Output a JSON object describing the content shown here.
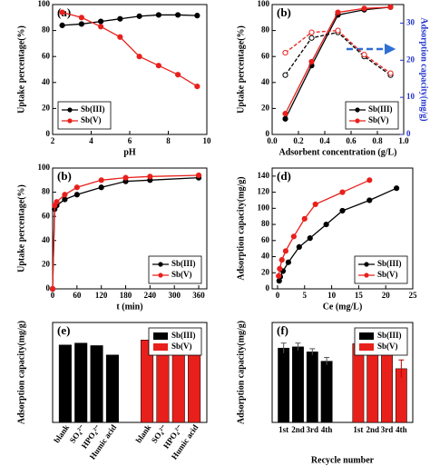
{
  "chart_data": [
    {
      "type": "line",
      "title": "(a)",
      "x_label": "pH",
      "y_label": "Uptake percentage(%)",
      "xlim": [
        2,
        10
      ],
      "xticks": [
        2,
        4,
        6,
        8,
        10
      ],
      "ylim": [
        0,
        100
      ],
      "yticks": [
        0,
        20,
        40,
        60,
        80,
        100
      ],
      "legend": "lower left",
      "series": [
        {
          "name": "Sb(III)",
          "color": "#000000",
          "x": [
            2.5,
            3.5,
            4.5,
            5.5,
            6.5,
            7.5,
            8.5,
            9.5
          ],
          "values": [
            84,
            85,
            87,
            89,
            91,
            92,
            92,
            91.5
          ]
        },
        {
          "name": "Sb(V)",
          "color": "#e8201c",
          "x": [
            2.5,
            3.5,
            4.5,
            5.5,
            6.5,
            7.5,
            8.5,
            9.5
          ],
          "values": [
            94,
            90,
            83,
            75,
            60,
            53,
            46,
            37
          ]
        }
      ]
    },
    {
      "type": "line",
      "title": "(b)",
      "x_label": "Adsorbent concentration (g/L)",
      "y_label": "Uptake percentage(%)",
      "y2_label": "Adsorption capacity(mg/g)",
      "xlim": [
        0,
        1.0
      ],
      "xticks": [
        {
          "value": 0,
          "label": "0.0"
        },
        0.2,
        0.4,
        0.6,
        0.8,
        {
          "value": 1,
          "label": "1.0"
        }
      ],
      "ylim": [
        0,
        100
      ],
      "yticks": [
        0,
        20,
        40,
        60,
        80,
        100
      ],
      "y2lim": [
        0,
        35
      ],
      "y2ticks": [
        0,
        10,
        20,
        30
      ],
      "legend": "lower right",
      "series": [
        {
          "name": "Sb(III)",
          "color": "#000000",
          "x": [
            0.1,
            0.3,
            0.5,
            0.7,
            0.9
          ],
          "values": [
            12,
            53,
            92,
            96,
            98
          ]
        },
        {
          "name": "Sb(V)",
          "color": "#e8201c",
          "x": [
            0.1,
            0.3,
            0.5,
            0.7,
            0.9
          ],
          "values": [
            16,
            56,
            94,
            97,
            98
          ]
        },
        {
          "color": "#000000",
          "dash": true,
          "axis": "y2",
          "x": [
            0.1,
            0.3,
            0.5,
            0.7,
            0.9
          ],
          "values": [
            16,
            26,
            27.5,
            21,
            16
          ]
        },
        {
          "color": "#e8201c",
          "dash": true,
          "axis": "y2",
          "x": [
            0.1,
            0.3,
            0.5,
            0.7,
            0.9
          ],
          "values": [
            22,
            27.5,
            28,
            21.5,
            16.5
          ]
        }
      ]
    },
    {
      "type": "line",
      "title": "(b)",
      "x_label": "t (min)",
      "y_label": "Uptake percentage(%)",
      "xlim": [
        0,
        380
      ],
      "xticks": [
        0,
        60,
        120,
        180,
        240,
        300,
        360
      ],
      "ylim": [
        0,
        100
      ],
      "yticks": [
        0,
        20,
        40,
        60,
        80,
        100
      ],
      "legend": "lower right",
      "series": [
        {
          "name": "Sb(III)",
          "color": "#000000",
          "x": [
            0,
            5,
            10,
            30,
            60,
            120,
            180,
            240,
            360
          ],
          "values": [
            0,
            66,
            69,
            74,
            78,
            84,
            89,
            90,
            92
          ]
        },
        {
          "name": "Sb(V)",
          "color": "#e8201c",
          "x": [
            0,
            5,
            10,
            30,
            60,
            120,
            180,
            240,
            360
          ],
          "values": [
            0,
            69,
            72,
            78,
            84,
            90,
            92,
            93,
            94
          ]
        }
      ]
    },
    {
      "type": "line",
      "title": "(d)",
      "x_label": "Ce (mg/L)",
      "y_label": "Adsorption capacity(mg/g)",
      "xlim": [
        -1,
        25
      ],
      "xticks": [
        0,
        5,
        10,
        15,
        20,
        25
      ],
      "ylim": [
        0,
        150
      ],
      "yticks": [
        0,
        20,
        40,
        60,
        80,
        100,
        120,
        140
      ],
      "legend": "lower right",
      "series": [
        {
          "name": "Sb(III)",
          "color": "#000000",
          "x": [
            0.3,
            0.5,
            1,
            2,
            4,
            6,
            9,
            12,
            17,
            22
          ],
          "values": [
            10,
            15,
            22,
            33,
            52,
            63,
            80,
            97,
            110,
            125
          ]
        },
        {
          "name": "Sb(V)",
          "color": "#e8201c",
          "x": [
            0.2,
            0.4,
            0.8,
            1.5,
            3,
            5,
            7,
            12,
            17
          ],
          "values": [
            16,
            25,
            36,
            47,
            65,
            87,
            105,
            120,
            135
          ]
        }
      ]
    },
    {
      "type": "bar",
      "title": "(e)",
      "y_label": "Adsorption capacity(mg/g)",
      "ylim": [
        0,
        160
      ],
      "legend": "upper right",
      "categories": [
        "blank",
        "SO₄²⁻",
        "HPO₄²⁻",
        "Humic acid"
      ],
      "series": [
        {
          "name": "Sb(III)",
          "color": "#000000",
          "values": [
            124,
            127,
            123,
            108
          ]
        },
        {
          "name": "Sb(V)",
          "color": "#e8201c",
          "values": [
            132,
            134,
            128,
            113
          ]
        }
      ]
    },
    {
      "type": "bar",
      "title": "(f)",
      "x_label": "Recycle number",
      "y_label": "Adsorption capacity(mg/g)",
      "ylim": [
        0,
        160
      ],
      "legend": "upper right",
      "categories": [
        "1st",
        "2nd",
        "3rd",
        "4th"
      ],
      "series": [
        {
          "name": "Sb(III)",
          "color": "#000000",
          "values": [
            119,
            121,
            113,
            98
          ],
          "errors": [
            8,
            6,
            5,
            6
          ]
        },
        {
          "name": "Sb(V)",
          "color": "#e8201c",
          "values": [
            126,
            122,
            116,
            86
          ],
          "errors": [
            6,
            5,
            9,
            14
          ]
        }
      ]
    }
  ]
}
